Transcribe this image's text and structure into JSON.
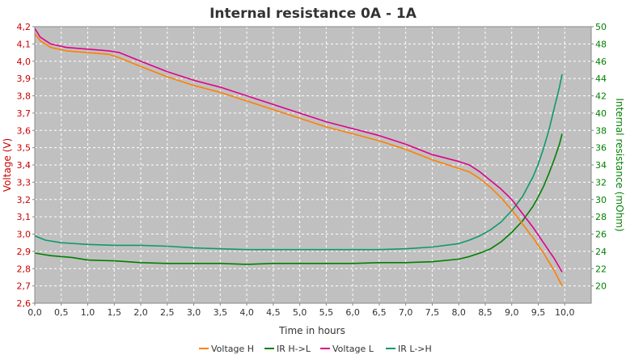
{
  "chart_data": {
    "type": "line",
    "title": "Internal resistance  0A - 1A",
    "xlabel": "Time in hours",
    "ylabel_left": "Voltage (V)",
    "ylabel_right": "Internal resistance (mOhm)",
    "xlim": [
      0,
      10.5
    ],
    "ylim_left": [
      2.6,
      4.2
    ],
    "ylim_right": [
      18,
      50
    ],
    "x_ticks": [
      "0,0",
      "0,5",
      "1,0",
      "1,5",
      "2,0",
      "2,5",
      "3,0",
      "3,5",
      "4,0",
      "4,5",
      "5,0",
      "5,5",
      "6,0",
      "6,5",
      "7,0",
      "7,5",
      "8,0",
      "8,5",
      "9,0",
      "9,5",
      "10,0"
    ],
    "y_left_ticks": [
      "2,6",
      "2,7",
      "2,8",
      "2,9",
      "3,0",
      "3,1",
      "3,2",
      "3,3",
      "3,4",
      "3,5",
      "3,6",
      "3,7",
      "3,8",
      "3,9",
      "4,0",
      "4,1",
      "4,2"
    ],
    "y_right_ticks": [
      "20",
      "22",
      "24",
      "26",
      "28",
      "30",
      "32",
      "34",
      "36",
      "38",
      "40",
      "42",
      "44",
      "46",
      "48",
      "50"
    ],
    "grid": true,
    "legend_position": "bottom",
    "colors": {
      "voltage_axis": "#cc0000",
      "ir_axis": "#008000",
      "plot_bg": "#c0c0c0",
      "grid": "#ffffff"
    },
    "series": [
      {
        "name": "Voltage H",
        "axis": "left",
        "color": "#ff8000",
        "x": [
          0,
          0.1,
          0.3,
          0.6,
          1.0,
          1.4,
          1.6,
          2.0,
          2.5,
          3.0,
          3.5,
          4.0,
          4.5,
          5.0,
          5.5,
          6.0,
          6.5,
          7.0,
          7.5,
          8.0,
          8.2,
          8.4,
          8.6,
          8.8,
          9.0,
          9.2,
          9.4,
          9.6,
          9.8,
          9.95
        ],
        "y": [
          4.16,
          4.12,
          4.08,
          4.06,
          4.05,
          4.04,
          4.02,
          3.97,
          3.91,
          3.86,
          3.82,
          3.77,
          3.72,
          3.67,
          3.62,
          3.58,
          3.54,
          3.49,
          3.43,
          3.38,
          3.36,
          3.32,
          3.27,
          3.21,
          3.14,
          3.06,
          2.98,
          2.89,
          2.79,
          2.7
        ]
      },
      {
        "name": "IR H->L",
        "axis": "right",
        "color": "#008000",
        "x": [
          0,
          0.3,
          0.7,
          1.0,
          1.5,
          2.0,
          2.5,
          3.0,
          3.5,
          4.0,
          4.5,
          5.0,
          5.5,
          6.0,
          6.5,
          7.0,
          7.5,
          8.0,
          8.2,
          8.4,
          8.6,
          8.8,
          9.0,
          9.2,
          9.4,
          9.5,
          9.6,
          9.7,
          9.8,
          9.9,
          9.95
        ],
        "y": [
          23.8,
          23.5,
          23.3,
          23.0,
          22.9,
          22.7,
          22.6,
          22.6,
          22.6,
          22.5,
          22.6,
          22.6,
          22.6,
          22.6,
          22.7,
          22.7,
          22.8,
          23.1,
          23.4,
          23.8,
          24.3,
          25.1,
          26.2,
          27.5,
          29.2,
          30.3,
          31.5,
          33.0,
          34.6,
          36.4,
          37.6
        ]
      },
      {
        "name": "Voltage L",
        "axis": "left",
        "color": "#e0008c",
        "x": [
          0,
          0.1,
          0.3,
          0.6,
          1.0,
          1.4,
          1.6,
          2.0,
          2.5,
          3.0,
          3.5,
          4.0,
          4.5,
          5.0,
          5.5,
          6.0,
          6.5,
          7.0,
          7.5,
          8.0,
          8.2,
          8.4,
          8.6,
          8.8,
          9.0,
          9.2,
          9.4,
          9.6,
          9.8,
          9.95
        ],
        "y": [
          4.19,
          4.14,
          4.1,
          4.08,
          4.07,
          4.06,
          4.05,
          4.0,
          3.94,
          3.89,
          3.85,
          3.8,
          3.75,
          3.7,
          3.65,
          3.61,
          3.57,
          3.52,
          3.46,
          3.42,
          3.4,
          3.36,
          3.31,
          3.26,
          3.2,
          3.12,
          3.04,
          2.95,
          2.86,
          2.78
        ]
      },
      {
        "name": "IR L->H",
        "axis": "right",
        "color": "#0e9a6a",
        "x": [
          0,
          0.2,
          0.5,
          1.0,
          1.5,
          2.0,
          2.5,
          3.0,
          3.5,
          4.0,
          4.5,
          5.0,
          5.5,
          6.0,
          6.5,
          7.0,
          7.5,
          8.0,
          8.2,
          8.4,
          8.6,
          8.8,
          9.0,
          9.2,
          9.4,
          9.5,
          9.6,
          9.7,
          9.8,
          9.9,
          9.95
        ],
        "y": [
          25.8,
          25.3,
          25.0,
          24.8,
          24.7,
          24.7,
          24.6,
          24.4,
          24.3,
          24.2,
          24.2,
          24.2,
          24.2,
          24.2,
          24.2,
          24.3,
          24.5,
          24.9,
          25.3,
          25.8,
          26.5,
          27.4,
          28.7,
          30.3,
          32.6,
          34.1,
          35.9,
          38.0,
          40.5,
          43.0,
          44.5
        ]
      }
    ]
  }
}
